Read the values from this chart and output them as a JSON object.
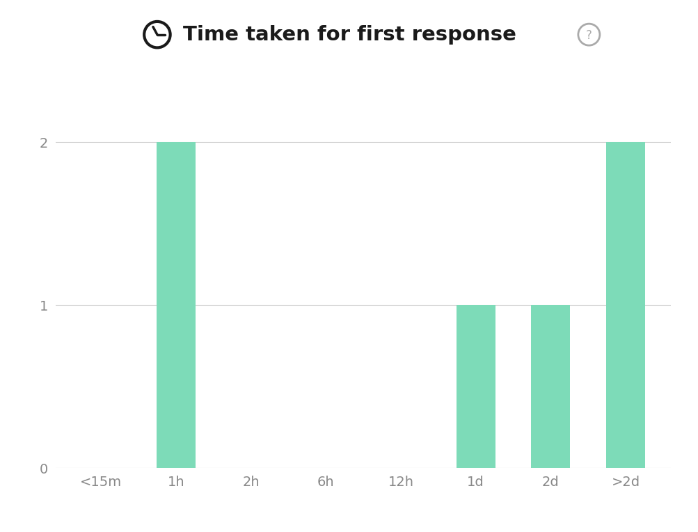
{
  "categories": [
    "<15m",
    "1h",
    "2h",
    "6h",
    "12h",
    "1d",
    "2d",
    ">2d"
  ],
  "values": [
    0,
    2,
    0,
    0,
    0,
    1,
    1,
    2
  ],
  "bar_color": "#7DDBB8",
  "background_color": "#ffffff",
  "title": "Time taken for first response",
  "yticks": [
    0,
    1,
    2
  ],
  "ylim": [
    0,
    2.35
  ],
  "title_fontsize": 21,
  "tick_fontsize": 14,
  "grid_color": "#d0d0d0",
  "tick_color": "#888888",
  "bar_width": 0.52
}
